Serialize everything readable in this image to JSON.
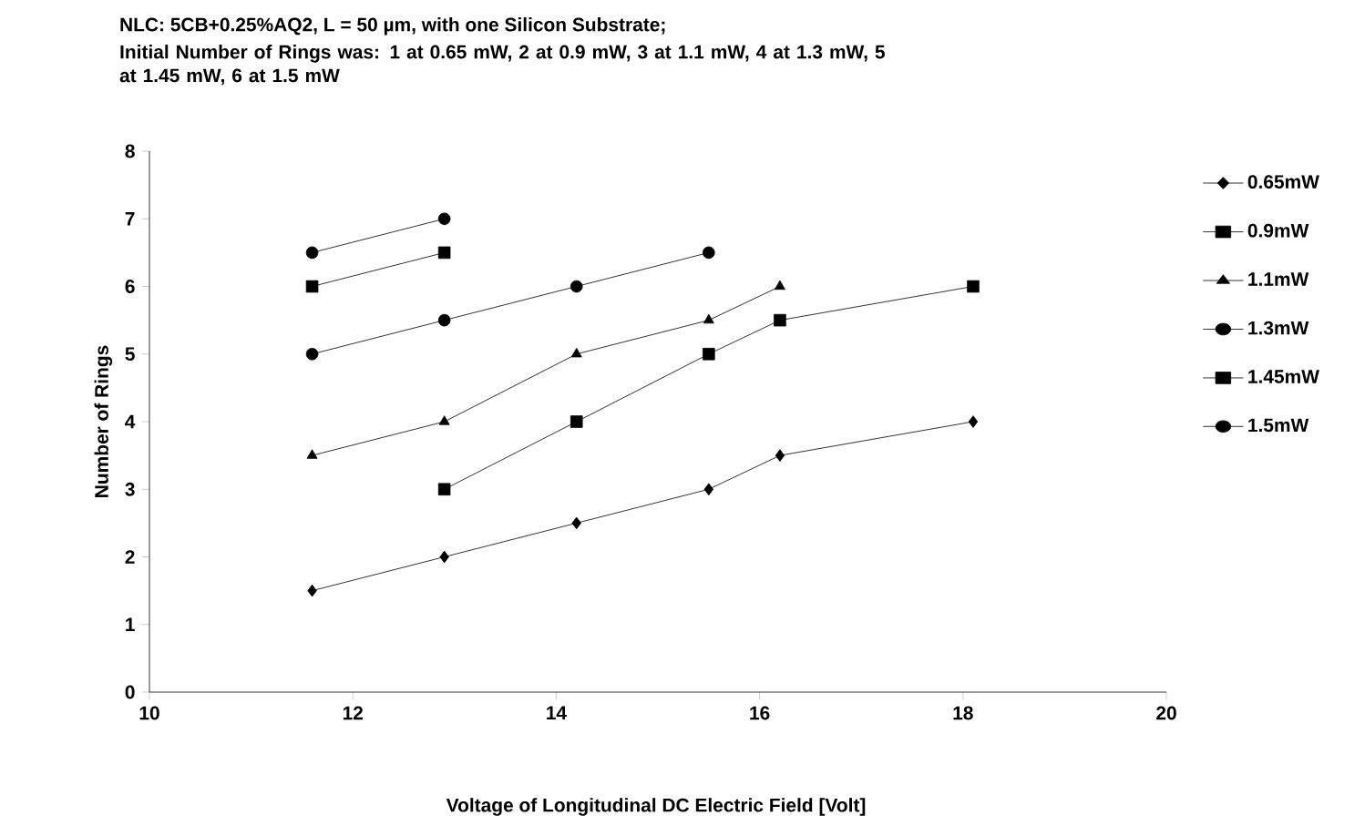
{
  "chart_data": {
    "type": "line",
    "title": "NLC: 5CB+0.25%AQ2, L = 50 µm, with one Silicon Substrate;",
    "subtitle": "Initial Number of Rings was: 1 at 0.65 mW, 2 at  0.9 mW, 3 at 1.1 mW, 4 at  1.3 mW, 5 at 1.45 mW, 6 at 1.5 mW",
    "xlabel": "Voltage of Longitudinal DC Electric Field [Volt]",
    "ylabel": "Number of Rings",
    "xlim": [
      10,
      20
    ],
    "xticks": [
      10,
      12,
      14,
      16,
      18,
      20
    ],
    "ylim": [
      0,
      8
    ],
    "yticks": [
      0,
      1,
      2,
      3,
      4,
      5,
      6,
      7,
      8
    ],
    "legend": "right",
    "grid": false,
    "line_style": "solid",
    "series": [
      {
        "name": "0.65mW",
        "color": "#000000",
        "marker": "diamond",
        "x": [
          11.6,
          12.9,
          14.2,
          15.5,
          16.2,
          18.1
        ],
        "values": [
          1.5,
          2,
          2.5,
          3,
          3.5,
          4
        ]
      },
      {
        "name": "0.9mW",
        "color": "#000000",
        "marker": "square",
        "x": [
          12.9,
          14.2,
          15.5,
          16.2,
          18.1
        ],
        "values": [
          3,
          4,
          5,
          5.5,
          6
        ]
      },
      {
        "name": "1.1mW",
        "color": "#000000",
        "marker": "triangle",
        "x": [
          11.6,
          12.9,
          14.2,
          15.5,
          16.2
        ],
        "values": [
          3.5,
          4,
          5,
          5.5,
          6
        ]
      },
      {
        "name": "1.3mW",
        "color": "#000000",
        "marker": "circle",
        "x": [
          11.6,
          12.9,
          14.2,
          15.5
        ],
        "values": [
          5,
          5.5,
          6,
          6.5
        ]
      },
      {
        "name": "1.45mW",
        "color": "#000000",
        "marker": "square",
        "x": [
          11.6,
          12.9
        ],
        "values": [
          6,
          6.5
        ]
      },
      {
        "name": "1.5mW",
        "color": "#000000",
        "marker": "circle",
        "x": [
          11.6,
          12.9
        ],
        "values": [
          6.5,
          7
        ]
      }
    ]
  }
}
